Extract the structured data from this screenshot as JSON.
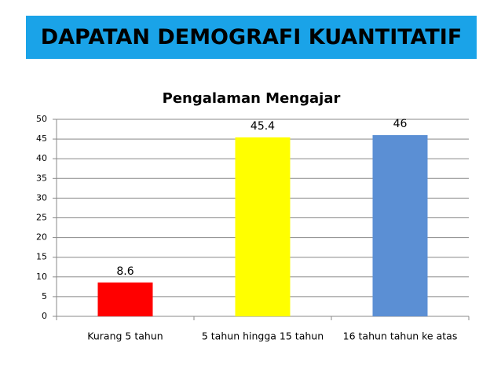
{
  "header": {
    "title": "DAPATAN DEMOGRAFI KUANTITATIF"
  },
  "chart_data": {
    "type": "bar",
    "title": "Pengalaman Mengajar",
    "categories": [
      "Kurang 5 tahun",
      "5 tahun hingga 15 tahun",
      "16 tahun tahun ke atas"
    ],
    "values": [
      8.6,
      45.4,
      46
    ],
    "colors": [
      "#ff0000",
      "#ffff00",
      "#5b8fd4"
    ],
    "ylim": [
      0,
      50
    ],
    "yticks": [
      0,
      5,
      10,
      15,
      20,
      25,
      30,
      35,
      40,
      45,
      50
    ],
    "grid": true
  }
}
